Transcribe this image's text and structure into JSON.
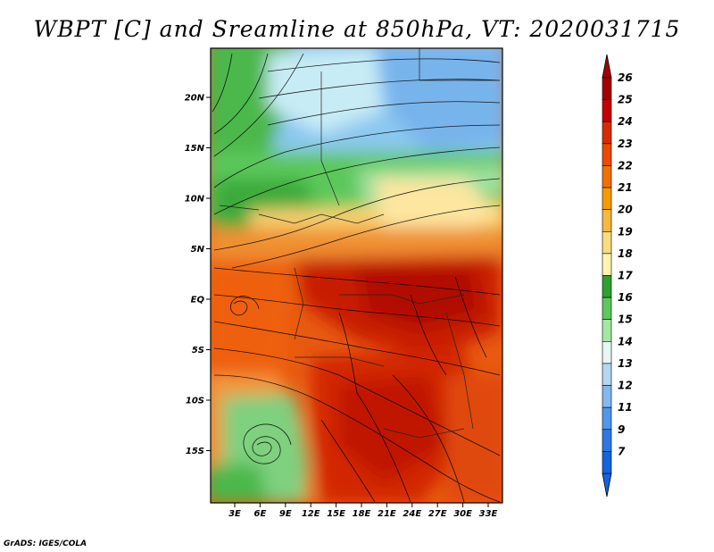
{
  "title": "WBPT [C] and Sreamline at 850hPa, VT: 2020031715",
  "footer": "GrADS: IGES/COLA",
  "map": {
    "lat_ticks": [
      "20N",
      "15N",
      "10N",
      "5N",
      "EQ",
      "5S",
      "10S",
      "15S"
    ],
    "lon_ticks": [
      "3E",
      "6E",
      "9E",
      "12E",
      "15E",
      "18E",
      "21E",
      "24E",
      "27E",
      "30E",
      "33E"
    ]
  },
  "colorbar": {
    "labels": [
      "26",
      "25",
      "24",
      "23",
      "22",
      "21",
      "20",
      "19",
      "18",
      "17",
      "16",
      "15",
      "14",
      "13",
      "12",
      "11",
      "9",
      "7"
    ],
    "colors": [
      "#a50000",
      "#c40000",
      "#dc2a00",
      "#ea4b00",
      "#f07000",
      "#f59a00",
      "#f6b840",
      "#f8dc80",
      "#fdf5b0",
      "#2ea02e",
      "#5cc85c",
      "#a5e6a5",
      "#e6f5f5",
      "#b4d7f5",
      "#82b9f0",
      "#5096eb",
      "#2d78e6",
      "#1464dc"
    ]
  }
}
